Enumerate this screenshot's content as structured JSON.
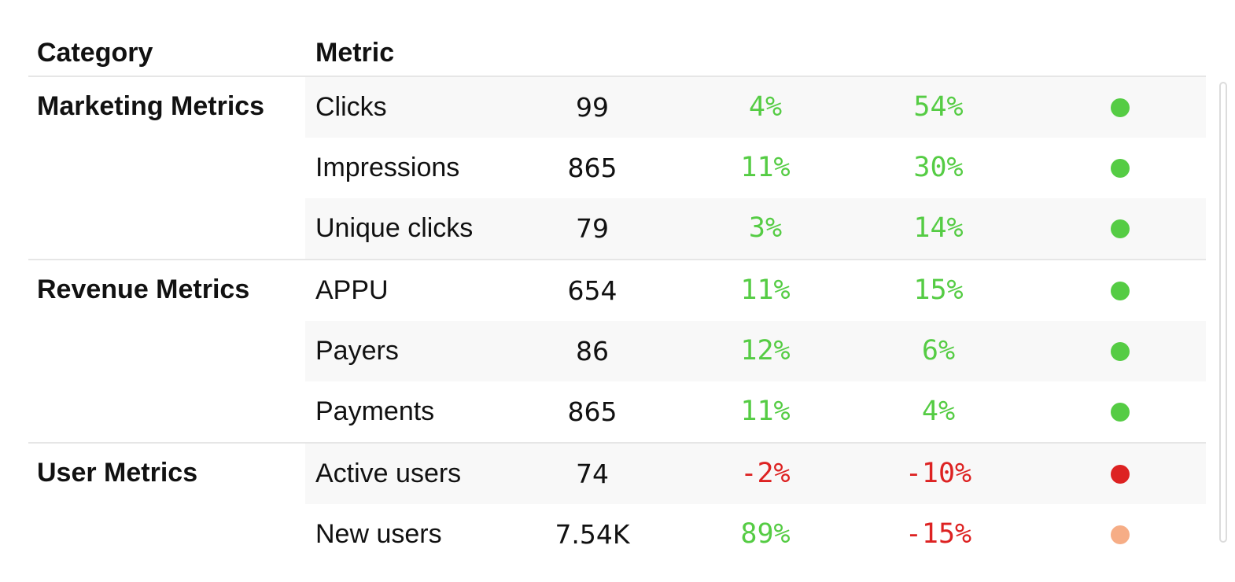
{
  "table": {
    "headers": {
      "category": "Category",
      "metric": "Metric"
    },
    "colors": {
      "positive": "#55cc44",
      "negative": "#dd2222",
      "dot_green": "#55cc44",
      "dot_red": "#dd2222",
      "dot_orange": "#f6ad86"
    },
    "groups": [
      {
        "label": "Marketing Metrics",
        "rows": [
          {
            "name": "Clicks",
            "value": "99",
            "change1": "4%",
            "change2": "54%",
            "c1": "pos",
            "c2": "pos",
            "dot": "green"
          },
          {
            "name": "Impressions",
            "value": "865",
            "change1": "11%",
            "change2": "30%",
            "c1": "pos",
            "c2": "pos",
            "dot": "green"
          },
          {
            "name": "Unique clicks",
            "value": "79",
            "change1": "3%",
            "change2": "14%",
            "c1": "pos",
            "c2": "pos",
            "dot": "green"
          }
        ]
      },
      {
        "label": "Revenue Metrics",
        "rows": [
          {
            "name": "APPU",
            "value": "654",
            "change1": "11%",
            "change2": "15%",
            "c1": "pos",
            "c2": "pos",
            "dot": "green"
          },
          {
            "name": "Payers",
            "value": "86",
            "change1": "12%",
            "change2": "6%",
            "c1": "pos",
            "c2": "pos",
            "dot": "green"
          },
          {
            "name": "Payments",
            "value": "865",
            "change1": "11%",
            "change2": "4%",
            "c1": "pos",
            "c2": "pos",
            "dot": "green"
          }
        ]
      },
      {
        "label": "User Metrics",
        "rows": [
          {
            "name": "Active users",
            "value": "74",
            "change1": "-2%",
            "change2": "-10%",
            "c1": "neg",
            "c2": "neg",
            "dot": "red"
          },
          {
            "name": "New users",
            "value": "7.54K",
            "change1": "89%",
            "change2": "-15%",
            "c1": "pos",
            "c2": "neg",
            "dot": "orange"
          }
        ]
      }
    ]
  }
}
